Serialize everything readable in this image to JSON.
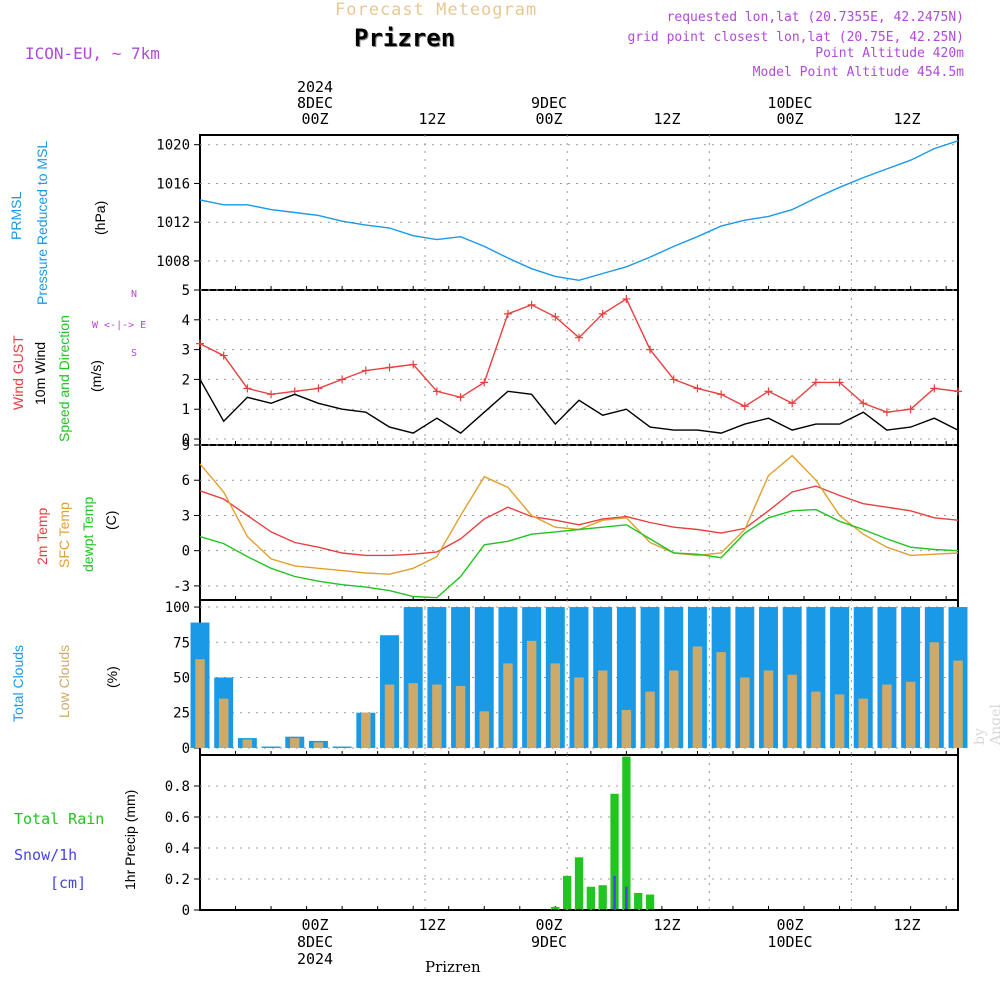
{
  "header": {
    "title": "Forecast Meteogram",
    "location": "Prizren",
    "model": "ICON-EU, ~ 7km",
    "requested": "requested lon,lat (20.7355E, 42.2475N)",
    "gridpoint": "grid point closest lon,lat (20.75E, 42.25N)",
    "point_alt": "Point Altitude 420m",
    "model_alt": "Model Point Altitude 454.5m"
  },
  "time_axis": {
    "top_labels": [
      {
        "line1": "2024",
        "line2": "8DEC",
        "line3": "00Z"
      },
      {
        "line1": "",
        "line2": "",
        "line3": "12Z"
      },
      {
        "line1": "",
        "line2": "9DEC",
        "line3": "00Z"
      },
      {
        "line1": "",
        "line2": "",
        "line3": "12Z"
      },
      {
        "line1": "",
        "line2": "10DEC",
        "line3": "00Z"
      },
      {
        "line1": "",
        "line2": "",
        "line3": "12Z"
      }
    ],
    "bottom_labels": [
      {
        "line1": "00Z",
        "line2": "8DEC",
        "line3": "2024"
      },
      {
        "line1": "12Z",
        "line2": "",
        "line3": ""
      },
      {
        "line1": "00Z",
        "line2": "9DEC",
        "line3": ""
      },
      {
        "line1": "12Z",
        "line2": "",
        "line3": ""
      },
      {
        "line1": "00Z",
        "line2": "10DEC",
        "line3": ""
      },
      {
        "line1": "12Z",
        "line2": "",
        "line3": ""
      }
    ],
    "hours_start": -19,
    "hours_end": 45
  },
  "labels": {
    "pressure": {
      "l1": "PRMSL",
      "l2": "Pressure Reduced to MSL",
      "unit": "(hPa)"
    },
    "wind": {
      "l1": "Wind GUST",
      "l2": "10m Wind",
      "l3": "Speed and Direction",
      "unit": "(m/s)",
      "compass_n": "N",
      "compass_s": "S",
      "compass_we": "W <-|-> E"
    },
    "temp": {
      "l1": "2m Temp",
      "l2": "SFC Temp",
      "l3": "dewpt Temp",
      "unit": "(C)"
    },
    "clouds": {
      "l1": "Total Clouds",
      "l2": "Low Clouds",
      "unit": "(%)"
    },
    "precip": {
      "l1": "Total  Rain",
      "l2": "Snow/1h",
      "l3": "[cm]",
      "unit": "1hr Precip (mm)"
    },
    "footer": "Prizren",
    "watermark": "by Angel"
  },
  "colors": {
    "pressure": "#1a9ae6",
    "gust": "#e84040",
    "wind": "#000000",
    "t2m": "#e84040",
    "tsfc": "#e0a030",
    "dewpt": "#22c422",
    "total_cloud": "#1a9ae6",
    "low_cloud": "#cdaa6a",
    "rain": "#22c422",
    "snow": "#4444ee",
    "magenta_text": "#b04ad8"
  },
  "chart_data": [
    {
      "type": "line",
      "title": "PRMSL Pressure Reduced to MSL",
      "ylabel": "(hPa)",
      "ylim": [
        1005,
        1021
      ],
      "yticks": [
        1008,
        1012,
        1016,
        1020
      ],
      "x_hours": [
        -19,
        -17,
        -15,
        -13,
        -11,
        -9,
        -7,
        -5,
        -3,
        -1,
        1,
        3,
        5,
        7,
        9,
        11,
        13,
        15,
        17,
        19,
        21,
        23,
        25,
        27,
        29,
        31,
        33,
        35,
        37,
        39,
        41,
        43,
        45
      ],
      "series": [
        {
          "name": "PRMSL",
          "values": [
            1014.3,
            1013.8,
            1013.8,
            1013.3,
            1013.0,
            1012.7,
            1012.1,
            1011.7,
            1011.4,
            1010.6,
            1010.2,
            1010.5,
            1009.5,
            1008.3,
            1007.2,
            1006.4,
            1006.0,
            1006.7,
            1007.4,
            1008.4,
            1009.5,
            1010.5,
            1011.6,
            1012.2,
            1012.6,
            1013.3,
            1014.5,
            1015.6,
            1016.6,
            1017.5,
            1018.4,
            1019.6,
            1020.4
          ]
        }
      ]
    },
    {
      "type": "line",
      "title": "Wind GUST / 10m Wind Speed and Direction",
      "ylabel": "(m/s)",
      "ylim": [
        -0.2,
        5
      ],
      "yticks": [
        0,
        1,
        2,
        3,
        4,
        5
      ],
      "x_hours": [
        -19,
        -17,
        -15,
        -13,
        -11,
        -9,
        -7,
        -5,
        -3,
        -1,
        1,
        3,
        5,
        7,
        9,
        11,
        13,
        15,
        17,
        19,
        21,
        23,
        25,
        27,
        29,
        31,
        33,
        35,
        37,
        39,
        41,
        43,
        45
      ],
      "series": [
        {
          "name": "Wind GUST",
          "values": [
            3.2,
            2.8,
            1.7,
            1.5,
            1.6,
            1.7,
            2.0,
            2.3,
            2.4,
            2.5,
            1.6,
            1.4,
            1.9,
            4.2,
            4.5,
            4.1,
            3.4,
            4.2,
            4.7,
            3.0,
            2.0,
            1.7,
            1.5,
            1.1,
            1.6,
            1.2,
            1.9,
            1.9,
            1.2,
            0.9,
            1.0,
            1.7,
            1.6
          ]
        },
        {
          "name": "10m Wind",
          "values": [
            2.0,
            0.6,
            1.4,
            1.2,
            1.5,
            1.2,
            1.0,
            0.9,
            0.4,
            0.2,
            0.7,
            0.2,
            0.9,
            1.6,
            1.5,
            0.5,
            1.3,
            0.8,
            1.0,
            0.4,
            0.3,
            0.3,
            0.2,
            0.5,
            0.7,
            0.3,
            0.5,
            0.5,
            0.9,
            0.3,
            0.4,
            0.7,
            0.3
          ]
        }
      ]
    },
    {
      "type": "line",
      "title": "2m Temp / SFC Temp / dewpt Temp",
      "ylabel": "(C)",
      "ylim": [
        -4.2,
        9
      ],
      "yticks": [
        -3,
        0,
        3,
        6,
        9
      ],
      "x_hours": [
        -19,
        -17,
        -15,
        -13,
        -11,
        -9,
        -7,
        -5,
        -3,
        -1,
        1,
        3,
        5,
        7,
        9,
        11,
        13,
        15,
        17,
        19,
        21,
        23,
        25,
        27,
        29,
        31,
        33,
        35,
        37,
        39,
        41,
        43,
        45
      ],
      "series": [
        {
          "name": "2m Temp",
          "values": [
            5.1,
            4.4,
            3.0,
            1.6,
            0.7,
            0.3,
            -0.2,
            -0.4,
            -0.4,
            -0.3,
            -0.1,
            1.0,
            2.7,
            3.7,
            2.9,
            2.6,
            2.2,
            2.7,
            2.9,
            2.4,
            2.0,
            1.8,
            1.5,
            1.9,
            3.4,
            5.0,
            5.5,
            4.7,
            4.0,
            3.7,
            3.4,
            2.8,
            2.6
          ]
        },
        {
          "name": "SFC Temp",
          "values": [
            7.4,
            5.0,
            1.2,
            -0.7,
            -1.3,
            -1.5,
            -1.7,
            -1.9,
            -2.0,
            -1.5,
            -0.5,
            3.0,
            6.3,
            5.4,
            3.0,
            2.0,
            1.8,
            2.6,
            2.8,
            0.7,
            -0.2,
            -0.4,
            -0.2,
            1.8,
            6.4,
            8.1,
            6.0,
            3.0,
            1.4,
            0.3,
            -0.4,
            -0.3,
            -0.2
          ]
        },
        {
          "name": "dewpt Temp",
          "values": [
            1.2,
            0.6,
            -0.5,
            -1.5,
            -2.2,
            -2.6,
            -2.9,
            -3.1,
            -3.4,
            -3.9,
            -4.0,
            -2.2,
            0.5,
            0.8,
            1.4,
            1.6,
            1.8,
            2.0,
            2.2,
            1.0,
            -0.2,
            -0.3,
            -0.6,
            1.5,
            2.8,
            3.4,
            3.5,
            2.5,
            1.8,
            1.0,
            0.3,
            0.1,
            0.0
          ]
        }
      ]
    },
    {
      "type": "bar",
      "title": "Total Clouds / Low Clouds",
      "ylabel": "(%)",
      "ylim": [
        -5,
        105
      ],
      "yticks": [
        0,
        25,
        50,
        75,
        100
      ],
      "x_hours": [
        -19,
        -17,
        -15,
        -13,
        -11,
        -9,
        -7,
        -5,
        -3,
        -1,
        1,
        3,
        5,
        7,
        9,
        11,
        13,
        15,
        17,
        19,
        21,
        23,
        25,
        27,
        29,
        31,
        33,
        35,
        37,
        39,
        41,
        43,
        45
      ],
      "series": [
        {
          "name": "Total Clouds",
          "values": [
            89,
            50,
            7,
            1,
            8,
            5,
            1,
            25,
            80,
            100,
            100,
            100,
            100,
            100,
            100,
            100,
            100,
            100,
            100,
            100,
            100,
            100,
            100,
            100,
            100,
            100,
            100,
            100,
            100,
            100,
            100,
            100,
            100
          ]
        },
        {
          "name": "Low Clouds",
          "values": [
            63,
            35,
            6,
            0,
            7,
            4,
            0,
            25,
            45,
            46,
            45,
            44,
            26,
            60,
            76,
            60,
            50,
            55,
            27,
            40,
            55,
            72,
            68,
            50,
            55,
            52,
            40,
            38,
            35,
            45,
            47,
            75,
            62
          ]
        }
      ]
    },
    {
      "type": "bar",
      "title": "Total Rain / Snow/1h",
      "ylabel": "1hr Precip (mm)",
      "ylim": [
        0,
        1.0
      ],
      "yticks": [
        0,
        0.2,
        0.4,
        0.6,
        0.8
      ],
      "x_hours": [
        11,
        12,
        13,
        14,
        15,
        16,
        17,
        18,
        19,
        20
      ],
      "series": [
        {
          "name": "Total Rain",
          "values": [
            0.02,
            0.22,
            0.34,
            0.15,
            0.16,
            0.75,
            0.99,
            0.11,
            0.1,
            0.0
          ]
        },
        {
          "name": "Snow/1h",
          "values": [
            0,
            0,
            0,
            0,
            0,
            0.22,
            0.15,
            0,
            0,
            0
          ]
        }
      ]
    }
  ]
}
